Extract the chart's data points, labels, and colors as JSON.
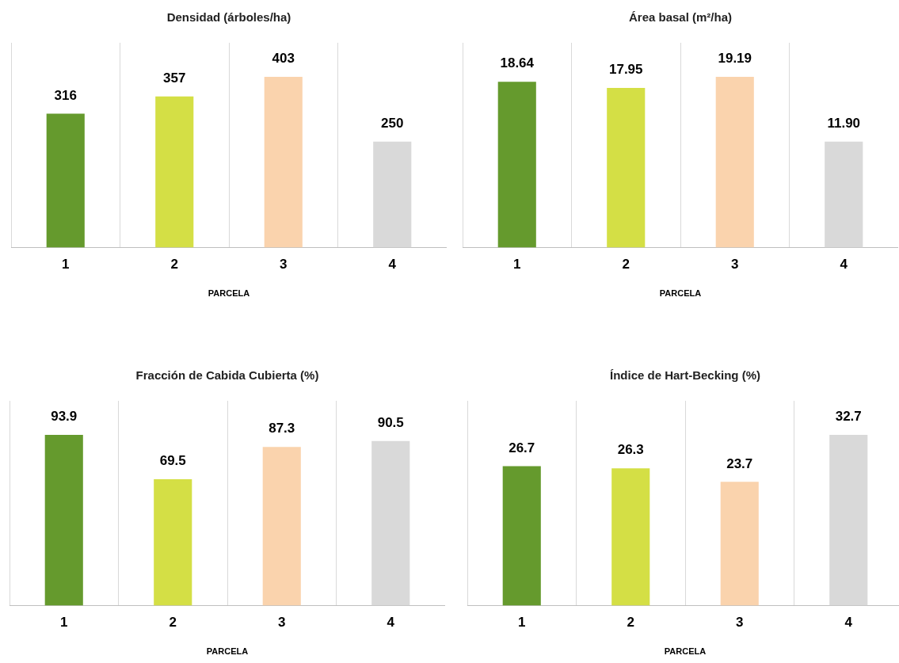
{
  "chart_data": [
    {
      "type": "bar",
      "title": "Densidad (árboles/ha)",
      "xlabel": "PARCELA",
      "categories": [
        "1",
        "2",
        "3",
        "4"
      ],
      "values": [
        316,
        357,
        403,
        250
      ],
      "value_labels": [
        "316",
        "357",
        "403",
        "250"
      ],
      "colors": [
        "#659a2d",
        "#d4df45",
        "#fad3ad",
        "#d9d9d9"
      ],
      "grid": "x",
      "tick_labels": "x"
    },
    {
      "type": "bar",
      "title": "Área basal (m²/ha)",
      "xlabel": "PARCELA",
      "categories": [
        "1",
        "2",
        "3",
        "4"
      ],
      "values": [
        18.64,
        17.95,
        19.19,
        11.9
      ],
      "value_labels": [
        "18.64",
        "17.95",
        "19.19",
        "11.90"
      ],
      "colors": [
        "#659a2d",
        "#d4df45",
        "#fad3ad",
        "#d9d9d9"
      ],
      "grid": "x",
      "tick_labels": "x"
    },
    {
      "type": "bar",
      "title": "Fracción de Cabida Cubierta (%)",
      "xlabel": "PARCELA",
      "categories": [
        "1",
        "2",
        "3",
        "4"
      ],
      "values": [
        93.9,
        69.5,
        87.3,
        90.5
      ],
      "value_labels": [
        "93.9",
        "69.5",
        "87.3",
        "90.5"
      ],
      "colors": [
        "#659a2d",
        "#d4df45",
        "#fad3ad",
        "#d9d9d9"
      ],
      "grid": "x",
      "tick_labels": "x"
    },
    {
      "type": "bar",
      "title": "Índice de Hart-Becking (%)",
      "xlabel": "PARCELA",
      "categories": [
        "1",
        "2",
        "3",
        "4"
      ],
      "values": [
        26.7,
        26.3,
        23.7,
        32.7
      ],
      "value_labels": [
        "26.7",
        "26.3",
        "23.7",
        "32.7"
      ],
      "colors": [
        "#659a2d",
        "#d4df45",
        "#fad3ad",
        "#d9d9d9"
      ],
      "grid": "x",
      "tick_labels": "x"
    }
  ]
}
